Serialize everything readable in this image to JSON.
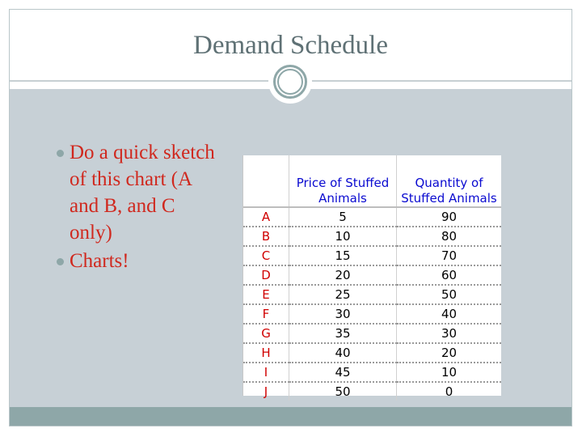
{
  "slide": {
    "title": "Demand Schedule",
    "bullets": [
      "Do a quick sketch of this chart (A and B, and C only)",
      "Charts!"
    ]
  },
  "table": {
    "headers": [
      "",
      "Price of Stuffed Animals",
      "Quantity of Stuffed Animals"
    ],
    "rows": [
      [
        "A",
        "5",
        "90"
      ],
      [
        "B",
        "10",
        "80"
      ],
      [
        "C",
        "15",
        "70"
      ],
      [
        "D",
        "20",
        "60"
      ],
      [
        "E",
        "25",
        "50"
      ],
      [
        "F",
        "30",
        "40"
      ],
      [
        "G",
        "35",
        "30"
      ],
      [
        "H",
        "40",
        "20"
      ],
      [
        "I",
        "45",
        "10"
      ],
      [
        "J",
        "50",
        "0"
      ]
    ]
  },
  "colors": {
    "title": "#5f7175",
    "bullet_text": "#d0281e",
    "content_bg": "#c7d0d6",
    "accent": "#8ea7a8",
    "header_text": "#0a0ad0",
    "row_letter": "#d00000"
  },
  "icons": {
    "title_ornament": "circle-ornament-icon",
    "bullet": "bullet-dot-icon"
  }
}
